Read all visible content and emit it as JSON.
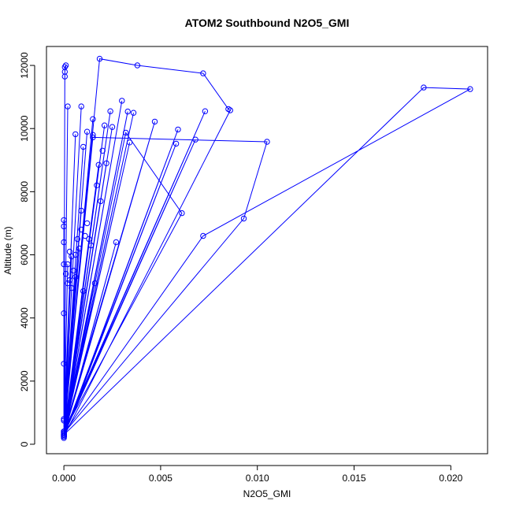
{
  "chart_data": {
    "type": "line",
    "title": "ATOM2 Southbound N2O5_GMI",
    "xlabel": "N2O5_GMI",
    "ylabel": "Altitude (m)",
    "xlim": [
      -0.0009,
      0.0219
    ],
    "ylim": [
      -300,
      12600
    ],
    "xticks": [
      0.0,
      0.005,
      0.01,
      0.015,
      0.02
    ],
    "xtick_labels": [
      "0.000",
      "0.005",
      "0.010",
      "0.015",
      "0.020"
    ],
    "yticks": [
      0,
      2000,
      4000,
      6000,
      8000,
      10000,
      12000
    ],
    "ytick_labels": [
      "0",
      "2000",
      "4000",
      "6000",
      "8000",
      "10000",
      "12000"
    ],
    "grid": false,
    "series": [
      {
        "color": "#0000ff",
        "marker": "open-circle",
        "points": [
          [
            0.0,
            200
          ],
          [
            0.0,
            250
          ],
          [
            0.0,
            300
          ],
          [
            0.00185,
            12210
          ],
          [
            0.0038,
            12000
          ],
          [
            0.0072,
            11750
          ],
          [
            0.0085,
            10620
          ],
          [
            0.0086,
            10580
          ],
          [
            0.0,
            250
          ],
          [
            5e-05,
            11950
          ],
          [
            0.0001,
            12000
          ],
          [
            5e-05,
            11800
          ],
          [
            5e-05,
            11650
          ],
          [
            0.0,
            300
          ],
          [
            0.0186,
            11300
          ],
          [
            0.021,
            11250
          ],
          [
            0.0072,
            6600
          ],
          [
            0.0,
            350
          ],
          [
            0.0093,
            7150
          ],
          [
            0.0105,
            9580
          ],
          [
            0.0015,
            9720
          ],
          [
            0.0,
            400
          ],
          [
            0.0061,
            7320
          ],
          [
            0.0032,
            9870
          ],
          [
            0.0,
            300
          ],
          [
            0.003,
            10880
          ],
          [
            0.0,
            350
          ],
          [
            0.0073,
            10550
          ],
          [
            0.0,
            400
          ],
          [
            0.0002,
            10700
          ],
          [
            0.0,
            300
          ],
          [
            0.0009,
            10700
          ],
          [
            0.0,
            250
          ],
          [
            0.0024,
            10550
          ],
          [
            0.0,
            350
          ],
          [
            0.0036,
            10500
          ],
          [
            0.0,
            300
          ],
          [
            0.0033,
            10540
          ],
          [
            0.0,
            400
          ],
          [
            0.0047,
            10220
          ],
          [
            0.0,
            300
          ],
          [
            0.0015,
            10300
          ],
          [
            0.0,
            250
          ],
          [
            0.0021,
            10100
          ],
          [
            0.0,
            350
          ],
          [
            0.0025,
            10050
          ],
          [
            0.0,
            300
          ],
          [
            0.0059,
            9970
          ],
          [
            0.0,
            250
          ],
          [
            0.0006,
            9820
          ],
          [
            0.0,
            400
          ],
          [
            0.0012,
            9900
          ],
          [
            0.0,
            300
          ],
          [
            0.0068,
            9650
          ],
          [
            0.0,
            350
          ],
          [
            0.0034,
            9560
          ],
          [
            0.0,
            300
          ],
          [
            0.0058,
            9520
          ],
          [
            0.0,
            250
          ],
          [
            0.001,
            9420
          ],
          [
            0.0,
            350
          ],
          [
            0.0018,
            8850
          ],
          [
            0.0,
            300
          ],
          [
            0.0022,
            8900
          ],
          [
            0.0,
            400
          ],
          [
            0.0019,
            7700
          ],
          [
            0.0,
            300
          ],
          [
            0.0009,
            7400
          ],
          [
            0.0,
            250
          ],
          [
            0.0027,
            6400
          ],
          [
            0.0,
            300
          ],
          [
            0.0013,
            6500
          ],
          [
            0.0,
            350
          ],
          [
            0.0016,
            5100
          ],
          [
            0.0,
            300
          ],
          [
            0.001,
            4850
          ],
          [
            0.0,
            250
          ],
          [
            0.0004,
            5950
          ],
          [
            0.0,
            300
          ],
          [
            0.0008,
            6200
          ],
          [
            0.0,
            400
          ],
          [
            0.0006,
            5300
          ],
          [
            0.0,
            350
          ],
          [
            0.0002,
            5700
          ],
          [
            0.0,
            300
          ],
          [
            0.0,
            7100
          ],
          [
            0.0,
            6900
          ],
          [
            0.0,
            6400
          ],
          [
            0.0,
            5700
          ],
          [
            0.0,
            4150
          ],
          [
            0.0,
            2550
          ],
          [
            0.0,
            800
          ],
          [
            0.0,
            750
          ],
          [
            0.0,
            250
          ]
        ],
        "extra_points": [
          [
            0.0003,
            5200
          ],
          [
            0.0005,
            5500
          ],
          [
            0.0007,
            6500
          ],
          [
            0.0011,
            6600
          ],
          [
            0.0014,
            6300
          ],
          [
            0.0004,
            4950
          ],
          [
            0.0002,
            5100
          ],
          [
            0.0006,
            6000
          ],
          [
            0.0009,
            6800
          ],
          [
            0.0012,
            7000
          ],
          [
            0.0015,
            9800
          ],
          [
            0.002,
            9300
          ],
          [
            0.0017,
            8200
          ],
          [
            0.0003,
            6100
          ],
          [
            0.0001,
            5400
          ]
        ]
      }
    ]
  }
}
